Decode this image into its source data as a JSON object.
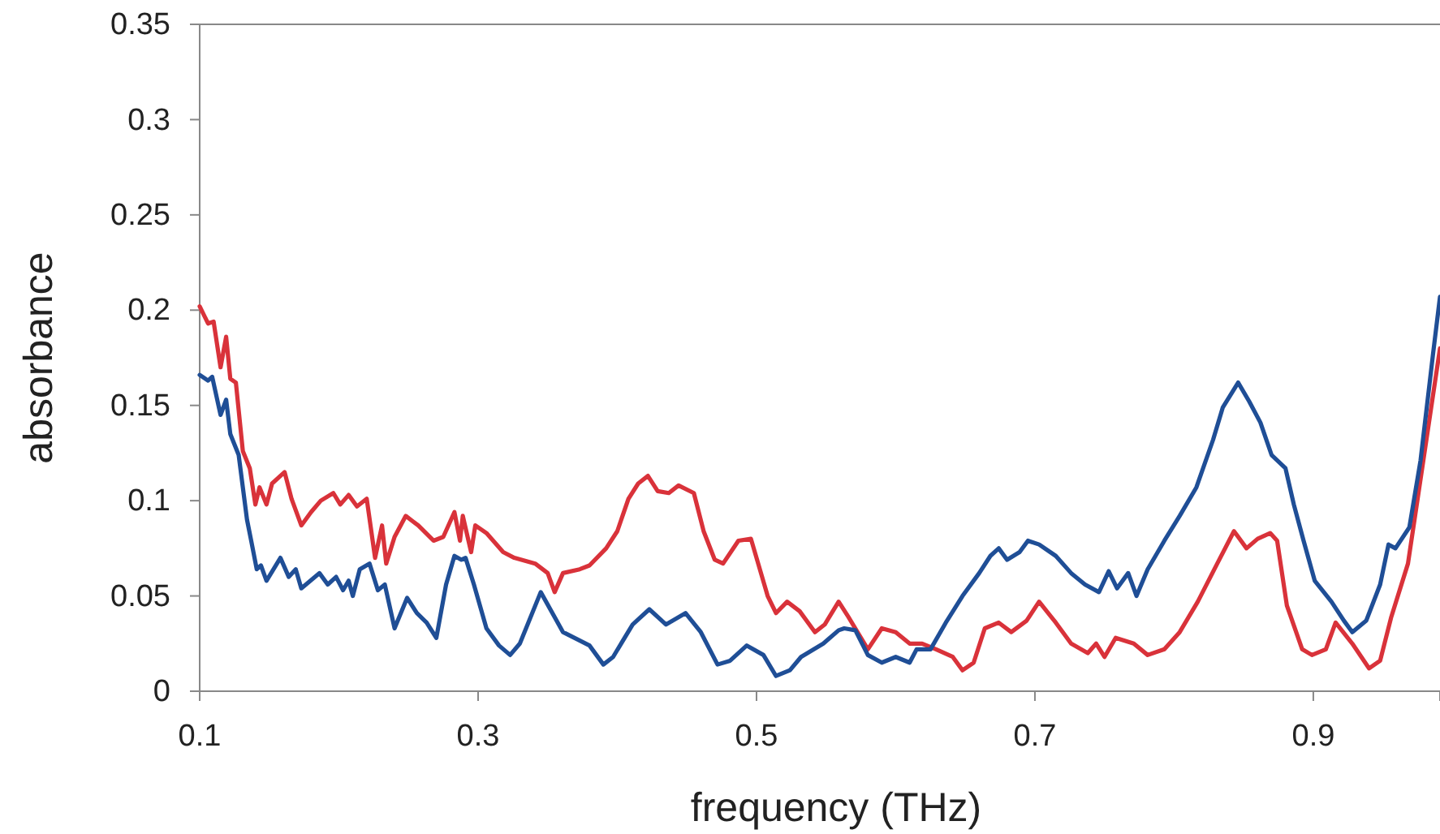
{
  "chart_data": {
    "type": "line",
    "xlabel": "frequency (THz)",
    "ylabel": "absorbance",
    "xlim": [
      0.1,
      0.991
    ],
    "xticks": [
      0.1,
      0.3,
      0.5,
      0.7,
      0.9
    ],
    "ylim": [
      0,
      0.35
    ],
    "yticks": [
      0,
      0.05,
      0.1,
      0.15,
      0.2,
      0.25,
      0.3,
      0.35
    ],
    "grid": false,
    "marker": "none",
    "line_style": "solid",
    "series": [
      {
        "color": "#d9323a",
        "x": [
          0.1,
          0.106,
          0.11,
          0.115,
          0.119,
          0.122,
          0.126,
          0.131,
          0.136,
          0.14,
          0.143,
          0.148,
          0.152,
          0.161,
          0.166,
          0.173,
          0.18,
          0.187,
          0.196,
          0.201,
          0.207,
          0.213,
          0.22,
          0.226,
          0.231,
          0.234,
          0.24,
          0.248,
          0.257,
          0.268,
          0.275,
          0.283,
          0.287,
          0.289,
          0.295,
          0.298,
          0.306,
          0.318,
          0.326,
          0.341,
          0.35,
          0.355,
          0.361,
          0.373,
          0.38,
          0.392,
          0.4,
          0.408,
          0.415,
          0.422,
          0.429,
          0.437,
          0.444,
          0.455,
          0.462,
          0.47,
          0.476,
          0.487,
          0.496,
          0.508,
          0.514,
          0.522,
          0.531,
          0.542,
          0.549,
          0.559,
          0.566,
          0.58,
          0.59,
          0.6,
          0.61,
          0.619,
          0.629,
          0.641,
          0.648,
          0.656,
          0.664,
          0.674,
          0.683,
          0.694,
          0.703,
          0.715,
          0.726,
          0.738,
          0.744,
          0.75,
          0.758,
          0.771,
          0.781,
          0.793,
          0.804,
          0.817,
          0.831,
          0.843,
          0.852,
          0.86,
          0.869,
          0.874,
          0.881,
          0.892,
          0.899,
          0.909,
          0.916,
          0.928,
          0.94,
          0.948,
          0.956,
          0.968,
          0.979,
          0.991
        ],
        "values": [
          0.202,
          0.193,
          0.194,
          0.17,
          0.186,
          0.164,
          0.162,
          0.126,
          0.117,
          0.098,
          0.107,
          0.098,
          0.109,
          0.115,
          0.101,
          0.087,
          0.094,
          0.1,
          0.104,
          0.098,
          0.103,
          0.097,
          0.101,
          0.07,
          0.087,
          0.067,
          0.081,
          0.092,
          0.087,
          0.079,
          0.081,
          0.094,
          0.079,
          0.092,
          0.073,
          0.087,
          0.083,
          0.073,
          0.07,
          0.067,
          0.062,
          0.052,
          0.062,
          0.064,
          0.066,
          0.075,
          0.084,
          0.101,
          0.109,
          0.113,
          0.105,
          0.104,
          0.108,
          0.104,
          0.084,
          0.069,
          0.067,
          0.079,
          0.08,
          0.05,
          0.041,
          0.047,
          0.042,
          0.031,
          0.035,
          0.047,
          0.039,
          0.022,
          0.033,
          0.031,
          0.025,
          0.025,
          0.022,
          0.018,
          0.011,
          0.015,
          0.033,
          0.036,
          0.031,
          0.037,
          0.047,
          0.036,
          0.025,
          0.02,
          0.025,
          0.018,
          0.028,
          0.025,
          0.019,
          0.022,
          0.031,
          0.047,
          0.067,
          0.084,
          0.075,
          0.08,
          0.083,
          0.079,
          0.045,
          0.022,
          0.019,
          0.022,
          0.036,
          0.025,
          0.012,
          0.016,
          0.039,
          0.067,
          0.121,
          0.18
        ]
      },
      {
        "color": "#1f4e96",
        "x": [
          0.1,
          0.106,
          0.109,
          0.115,
          0.119,
          0.122,
          0.128,
          0.134,
          0.137,
          0.141,
          0.144,
          0.148,
          0.158,
          0.164,
          0.169,
          0.173,
          0.186,
          0.192,
          0.198,
          0.203,
          0.207,
          0.21,
          0.215,
          0.222,
          0.228,
          0.233,
          0.24,
          0.249,
          0.256,
          0.263,
          0.27,
          0.277,
          0.283,
          0.288,
          0.291,
          0.297,
          0.306,
          0.315,
          0.323,
          0.33,
          0.345,
          0.361,
          0.38,
          0.39,
          0.397,
          0.411,
          0.423,
          0.435,
          0.449,
          0.46,
          0.472,
          0.481,
          0.493,
          0.505,
          0.514,
          0.524,
          0.532,
          0.548,
          0.559,
          0.563,
          0.571,
          0.58,
          0.59,
          0.6,
          0.61,
          0.615,
          0.625,
          0.636,
          0.648,
          0.66,
          0.668,
          0.674,
          0.68,
          0.689,
          0.695,
          0.703,
          0.715,
          0.726,
          0.736,
          0.746,
          0.753,
          0.759,
          0.767,
          0.773,
          0.781,
          0.793,
          0.804,
          0.816,
          0.828,
          0.835,
          0.846,
          0.854,
          0.862,
          0.87,
          0.88,
          0.886,
          0.893,
          0.901,
          0.913,
          0.922,
          0.928,
          0.938,
          0.948,
          0.954,
          0.959,
          0.969,
          0.977,
          0.986,
          0.991
        ],
        "values": [
          0.166,
          0.163,
          0.165,
          0.145,
          0.153,
          0.135,
          0.124,
          0.09,
          0.079,
          0.064,
          0.066,
          0.058,
          0.07,
          0.06,
          0.064,
          0.054,
          0.062,
          0.056,
          0.06,
          0.053,
          0.058,
          0.05,
          0.064,
          0.067,
          0.053,
          0.056,
          0.033,
          0.049,
          0.041,
          0.036,
          0.028,
          0.056,
          0.071,
          0.069,
          0.07,
          0.056,
          0.033,
          0.024,
          0.019,
          0.025,
          0.052,
          0.031,
          0.024,
          0.014,
          0.018,
          0.035,
          0.043,
          0.035,
          0.041,
          0.031,
          0.014,
          0.016,
          0.024,
          0.019,
          0.008,
          0.011,
          0.018,
          0.025,
          0.032,
          0.033,
          0.032,
          0.019,
          0.015,
          0.018,
          0.015,
          0.022,
          0.022,
          0.036,
          0.05,
          0.062,
          0.071,
          0.075,
          0.069,
          0.073,
          0.079,
          0.077,
          0.071,
          0.062,
          0.056,
          0.052,
          0.063,
          0.054,
          0.062,
          0.05,
          0.064,
          0.079,
          0.092,
          0.107,
          0.132,
          0.149,
          0.162,
          0.152,
          0.141,
          0.124,
          0.117,
          0.098,
          0.079,
          0.058,
          0.047,
          0.037,
          0.031,
          0.037,
          0.056,
          0.077,
          0.075,
          0.086,
          0.121,
          0.177,
          0.207
        ]
      }
    ]
  }
}
